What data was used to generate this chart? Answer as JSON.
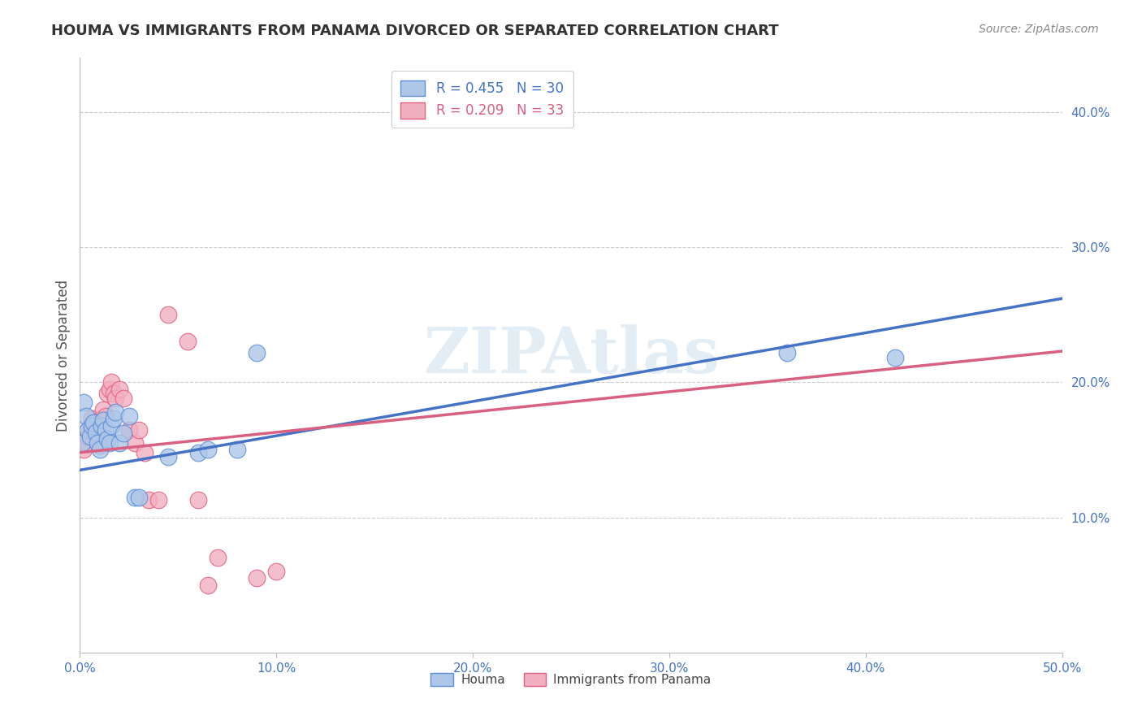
{
  "title": "HOUMA VS IMMIGRANTS FROM PANAMA DIVORCED OR SEPARATED CORRELATION CHART",
  "source": "Source: ZipAtlas.com",
  "ylabel": "Divorced or Separated",
  "xlim": [
    0,
    0.5
  ],
  "ylim": [
    0,
    0.44
  ],
  "xticks": [
    0.0,
    0.1,
    0.2,
    0.3,
    0.4,
    0.5
  ],
  "yticks": [
    0.1,
    0.2,
    0.3,
    0.4
  ],
  "xtick_labels": [
    "0.0%",
    "10.0%",
    "20.0%",
    "30.0%",
    "40.0%",
    "50.0%"
  ],
  "ytick_labels": [
    "10.0%",
    "20.0%",
    "30.0%",
    "40.0%"
  ],
  "legend1_label": "R = 0.455   N = 30",
  "legend2_label": "R = 0.209   N = 33",
  "houma_color": "#aec6e8",
  "panama_color": "#f2afc0",
  "houma_edge_color": "#5b8ed6",
  "panama_edge_color": "#e0607e",
  "houma_line_color": "#4472c4",
  "panama_line_color": "#d96080",
  "watermark": "ZIPAtlas",
  "houma_x": [
    0.001,
    0.002,
    0.003,
    0.004,
    0.005,
    0.006,
    0.007,
    0.008,
    0.009,
    0.01,
    0.011,
    0.012,
    0.013,
    0.014,
    0.015,
    0.016,
    0.017,
    0.018,
    0.02,
    0.022,
    0.025,
    0.028,
    0.03,
    0.045,
    0.06,
    0.065,
    0.08,
    0.09,
    0.36,
    0.415
  ],
  "houma_y": [
    0.155,
    0.185,
    0.175,
    0.165,
    0.16,
    0.168,
    0.17,
    0.163,
    0.155,
    0.15,
    0.168,
    0.172,
    0.165,
    0.158,
    0.155,
    0.168,
    0.173,
    0.178,
    0.155,
    0.162,
    0.175,
    0.115,
    0.115,
    0.145,
    0.148,
    0.15,
    0.15,
    0.222,
    0.222,
    0.218
  ],
  "panama_x": [
    0.001,
    0.002,
    0.003,
    0.004,
    0.005,
    0.006,
    0.007,
    0.008,
    0.009,
    0.01,
    0.011,
    0.012,
    0.013,
    0.014,
    0.015,
    0.016,
    0.017,
    0.018,
    0.02,
    0.022,
    0.025,
    0.028,
    0.03,
    0.033,
    0.035,
    0.04,
    0.045,
    0.055,
    0.06,
    0.065,
    0.07,
    0.09,
    0.1
  ],
  "panama_y": [
    0.155,
    0.15,
    0.155,
    0.16,
    0.168,
    0.173,
    0.17,
    0.162,
    0.158,
    0.153,
    0.173,
    0.18,
    0.175,
    0.192,
    0.195,
    0.2,
    0.192,
    0.188,
    0.195,
    0.188,
    0.165,
    0.155,
    0.165,
    0.148,
    0.113,
    0.113,
    0.25,
    0.23,
    0.113,
    0.05,
    0.07,
    0.055,
    0.06
  ],
  "houma_line_x0": 0.0,
  "houma_line_y0": 0.135,
  "houma_line_x1": 0.5,
  "houma_line_y1": 0.262,
  "panama_line_x0": 0.0,
  "panama_line_y0": 0.148,
  "panama_line_x1": 0.5,
  "panama_line_y1": 0.223
}
